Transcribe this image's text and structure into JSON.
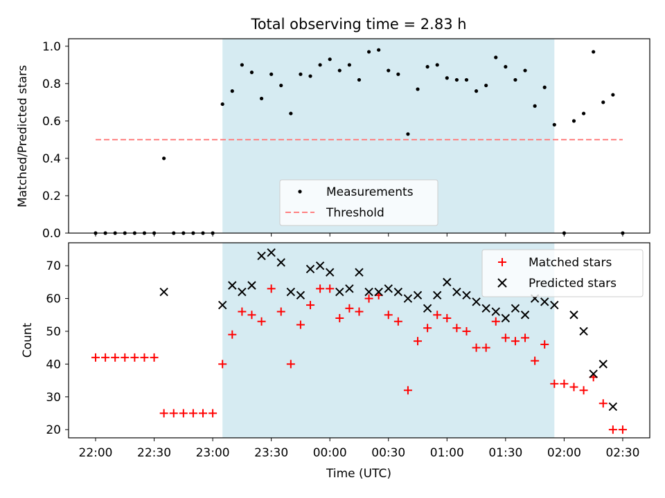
{
  "chart_data": {
    "title": "Total observing time = 2.83 h",
    "xlabel": "Time (UTC)",
    "x_ticks": [
      "22:00",
      "22:30",
      "23:00",
      "23:30",
      "00:00",
      "00:30",
      "01:00",
      "01:30",
      "02:00",
      "02:30"
    ],
    "shaded_interval": {
      "start": "23:05",
      "end": "01:55",
      "color": "#add8e6"
    },
    "charts": [
      {
        "type": "scatter",
        "ylabel": "Matched/Predicted stars",
        "ylim": [
          0,
          1.04
        ],
        "y_ticks": [
          "0.0",
          "0.2",
          "0.4",
          "0.6",
          "0.8",
          "1.0"
        ],
        "legend_placement": "bottom-center",
        "series": [
          {
            "name": "Measurements",
            "marker": "dot",
            "color": "#000000",
            "points": [
              [
                "22:00",
                0
              ],
              [
                "22:05",
                0
              ],
              [
                "22:10",
                0
              ],
              [
                "22:15",
                0
              ],
              [
                "22:20",
                0
              ],
              [
                "22:25",
                0
              ],
              [
                "22:30",
                0
              ],
              [
                "22:35",
                0.4
              ],
              [
                "22:40",
                0
              ],
              [
                "22:45",
                0
              ],
              [
                "22:50",
                0
              ],
              [
                "22:55",
                0
              ],
              [
                "23:00",
                0
              ],
              [
                "23:05",
                0.69
              ],
              [
                "23:10",
                0.76
              ],
              [
                "23:15",
                0.9
              ],
              [
                "23:20",
                0.86
              ],
              [
                "23:25",
                0.72
              ],
              [
                "23:30",
                0.85
              ],
              [
                "23:35",
                0.79
              ],
              [
                "23:40",
                0.64
              ],
              [
                "23:45",
                0.85
              ],
              [
                "23:50",
                0.84
              ],
              [
                "23:55",
                0.9
              ],
              [
                "00:00",
                0.93
              ],
              [
                "00:05",
                0.87
              ],
              [
                "00:10",
                0.9
              ],
              [
                "00:15",
                0.82
              ],
              [
                "00:20",
                0.97
              ],
              [
                "00:25",
                0.98
              ],
              [
                "00:30",
                0.87
              ],
              [
                "00:35",
                0.85
              ],
              [
                "00:40",
                0.53
              ],
              [
                "00:45",
                0.77
              ],
              [
                "00:50",
                0.89
              ],
              [
                "00:55",
                0.9
              ],
              [
                "01:00",
                0.83
              ],
              [
                "01:05",
                0.82
              ],
              [
                "01:10",
                0.82
              ],
              [
                "01:15",
                0.76
              ],
              [
                "01:20",
                0.79
              ],
              [
                "01:25",
                0.94
              ],
              [
                "01:30",
                0.89
              ],
              [
                "01:35",
                0.82
              ],
              [
                "01:40",
                0.87
              ],
              [
                "01:45",
                0.68
              ],
              [
                "01:50",
                0.78
              ],
              [
                "01:55",
                0.58
              ],
              [
                "02:00",
                0
              ],
              [
                "02:05",
                0.6
              ],
              [
                "02:10",
                0.64
              ],
              [
                "02:15",
                0.97
              ],
              [
                "02:20",
                0.7
              ],
              [
                "02:25",
                0.74
              ],
              [
                "02:30",
                0
              ]
            ]
          },
          {
            "name": "Threshold",
            "type": "line",
            "style": "dashed",
            "color": "#ff7f7f",
            "points": [
              [
                "22:00",
                0.5
              ],
              [
                "02:30",
                0.5
              ]
            ]
          }
        ]
      },
      {
        "type": "scatter",
        "ylabel": "Count",
        "ylim": [
          17.5,
          77
        ],
        "y_ticks": [
          "20",
          "30",
          "40",
          "50",
          "60",
          "70"
        ],
        "legend_placement": "top-right",
        "series": [
          {
            "name": "Matched stars",
            "marker": "plus",
            "color": "#ff0000",
            "points": [
              [
                "22:00",
                42
              ],
              [
                "22:05",
                42
              ],
              [
                "22:10",
                42
              ],
              [
                "22:15",
                42
              ],
              [
                "22:20",
                42
              ],
              [
                "22:25",
                42
              ],
              [
                "22:30",
                42
              ],
              [
                "22:35",
                25
              ],
              [
                "22:40",
                25
              ],
              [
                "22:45",
                25
              ],
              [
                "22:50",
                25
              ],
              [
                "22:55",
                25
              ],
              [
                "23:00",
                25
              ],
              [
                "23:05",
                40
              ],
              [
                "23:10",
                49
              ],
              [
                "23:15",
                56
              ],
              [
                "23:20",
                55
              ],
              [
                "23:25",
                53
              ],
              [
                "23:30",
                63
              ],
              [
                "23:35",
                56
              ],
              [
                "23:40",
                40
              ],
              [
                "23:45",
                52
              ],
              [
                "23:50",
                58
              ],
              [
                "23:55",
                63
              ],
              [
                "00:00",
                63
              ],
              [
                "00:05",
                54
              ],
              [
                "00:10",
                57
              ],
              [
                "00:15",
                56
              ],
              [
                "00:20",
                60
              ],
              [
                "00:25",
                61
              ],
              [
                "00:30",
                55
              ],
              [
                "00:35",
                53
              ],
              [
                "00:40",
                32
              ],
              [
                "00:45",
                47
              ],
              [
                "00:50",
                51
              ],
              [
                "00:55",
                55
              ],
              [
                "01:00",
                54
              ],
              [
                "01:05",
                51
              ],
              [
                "01:10",
                50
              ],
              [
                "01:15",
                45
              ],
              [
                "01:20",
                45
              ],
              [
                "01:25",
                53
              ],
              [
                "01:30",
                48
              ],
              [
                "01:35",
                47
              ],
              [
                "01:40",
                48
              ],
              [
                "01:45",
                41
              ],
              [
                "01:50",
                46
              ],
              [
                "01:55",
                34
              ],
              [
                "02:00",
                34
              ],
              [
                "02:05",
                33
              ],
              [
                "02:10",
                32
              ],
              [
                "02:15",
                36
              ],
              [
                "02:20",
                28
              ],
              [
                "02:25",
                20
              ],
              [
                "02:30",
                20
              ]
            ]
          },
          {
            "name": "Predicted stars",
            "marker": "x",
            "color": "#000000",
            "points": [
              [
                "22:35",
                62
              ],
              [
                "23:05",
                58
              ],
              [
                "23:10",
                64
              ],
              [
                "23:15",
                62
              ],
              [
                "23:20",
                64
              ],
              [
                "23:25",
                73
              ],
              [
                "23:30",
                74
              ],
              [
                "23:35",
                71
              ],
              [
                "23:40",
                62
              ],
              [
                "23:45",
                61
              ],
              [
                "23:50",
                69
              ],
              [
                "23:55",
                70
              ],
              [
                "00:00",
                68
              ],
              [
                "00:05",
                62
              ],
              [
                "00:10",
                63
              ],
              [
                "00:15",
                68
              ],
              [
                "00:20",
                62
              ],
              [
                "00:25",
                62
              ],
              [
                "00:30",
                63
              ],
              [
                "00:35",
                62
              ],
              [
                "00:40",
                60
              ],
              [
                "00:45",
                61
              ],
              [
                "00:50",
                57
              ],
              [
                "00:55",
                61
              ],
              [
                "01:00",
                65
              ],
              [
                "01:05",
                62
              ],
              [
                "01:10",
                61
              ],
              [
                "01:15",
                59
              ],
              [
                "01:20",
                57
              ],
              [
                "01:25",
                56
              ],
              [
                "01:30",
                54
              ],
              [
                "01:35",
                57
              ],
              [
                "01:40",
                55
              ],
              [
                "01:45",
                60
              ],
              [
                "01:50",
                59
              ],
              [
                "01:55",
                58
              ],
              [
                "02:05",
                55
              ],
              [
                "02:10",
                50
              ],
              [
                "02:15",
                37
              ],
              [
                "02:20",
                40
              ],
              [
                "02:25",
                27
              ]
            ]
          }
        ]
      }
    ]
  }
}
